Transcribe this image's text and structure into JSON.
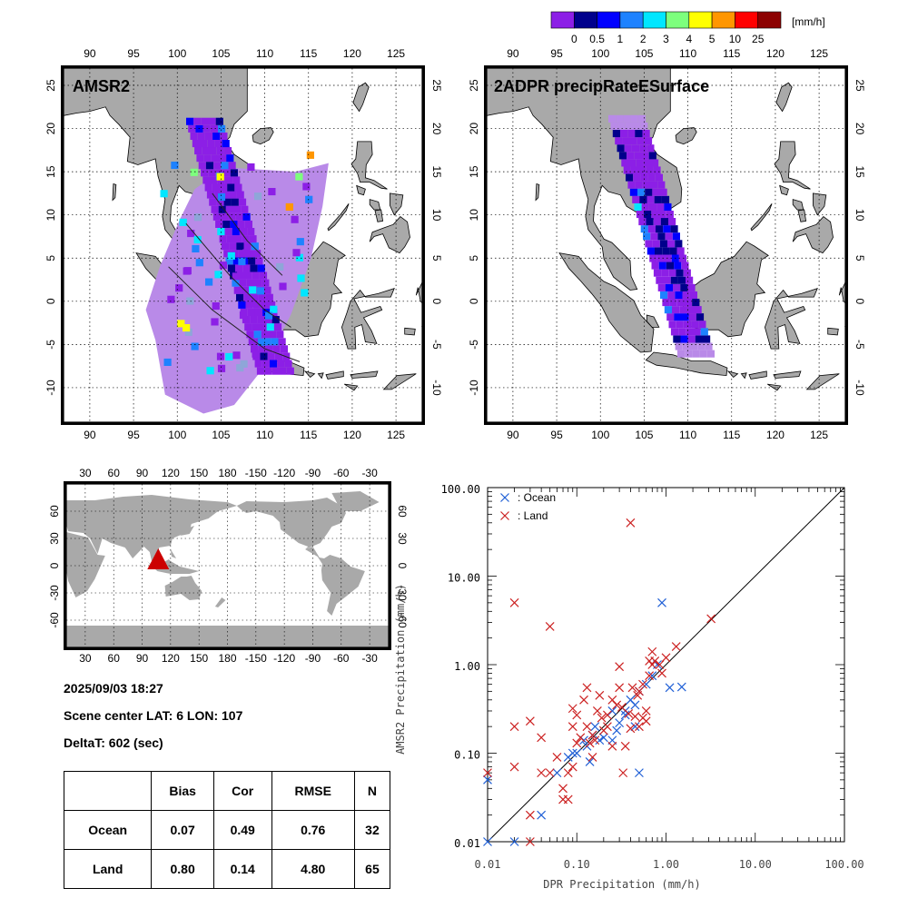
{
  "colorbar": {
    "unit": "[mm/h]",
    "ticks": [
      "0",
      "0.5",
      "1",
      "2",
      "3",
      "4",
      "5",
      "10",
      "25"
    ],
    "colors": [
      "#8c1fe6",
      "#00008c",
      "#0000ff",
      "#1e82ff",
      "#00e6ff",
      "#7dff7d",
      "#ffff00",
      "#ff9600",
      "#ff0000",
      "#8c0000"
    ]
  },
  "maps": {
    "amsr2_title": "AMSR2",
    "dpr_title": "2ADPR precipRateESurface",
    "lon_ticks": [
      "90",
      "95",
      "100",
      "105",
      "110",
      "115",
      "120",
      "125"
    ],
    "lat_ticks": [
      "25",
      "20",
      "15",
      "10",
      "5",
      "0",
      "-5",
      "-10"
    ],
    "land_color": "#a9a9a9",
    "rain_light_color": "#b98ae8"
  },
  "globe": {
    "lon_ticks": [
      "30",
      "60",
      "90",
      "120",
      "150",
      "180",
      "-150",
      "-120",
      "-90",
      "-60",
      "-30"
    ],
    "lat_ticks": [
      "60",
      "30",
      "0",
      "-30",
      "-60"
    ],
    "marker_color": "#cc0000"
  },
  "info": {
    "datetime": "2025/09/03 18:27",
    "scene_center": "Scene center LAT:  6   LON: 107",
    "deltat": "DeltaT:  602 (sec)"
  },
  "stats": {
    "headers": [
      "",
      "Bias",
      "Cor",
      "RMSE",
      "N"
    ],
    "rows": [
      [
        "Ocean",
        "0.07",
        "0.49",
        "0.76",
        "32"
      ],
      [
        "Land",
        "0.80",
        "0.14",
        "4.80",
        "65"
      ]
    ]
  },
  "chart_data": {
    "type": "scatter",
    "xlabel": "DPR Precipitation (mm/h)",
    "ylabel": "AMSR2 Precipitation (mm/h)",
    "xscale": "log",
    "yscale": "log",
    "xlim": [
      0.01,
      100
    ],
    "ylim": [
      0.01,
      100
    ],
    "x_tick_labels": [
      "0.01",
      "0.10",
      "1.00",
      "10.00",
      "100.00"
    ],
    "y_tick_labels": [
      "0.01",
      "0.10",
      "1.00",
      "10.00",
      "100.00"
    ],
    "reference_line": "1:1",
    "legend_position": "top-left",
    "series": [
      {
        "name": ": Ocean",
        "color": "#1f5fd6",
        "points": [
          [
            0.01,
            0.05
          ],
          [
            0.01,
            0.01
          ],
          [
            0.02,
            0.01
          ],
          [
            0.04,
            0.02
          ],
          [
            0.08,
            0.09
          ],
          [
            0.1,
            0.1
          ],
          [
            0.12,
            0.14
          ],
          [
            0.14,
            0.08
          ],
          [
            0.15,
            0.16
          ],
          [
            0.16,
            0.2
          ],
          [
            0.2,
            0.15
          ],
          [
            0.25,
            0.14
          ],
          [
            0.28,
            0.18
          ],
          [
            0.3,
            0.22
          ],
          [
            0.35,
            0.3
          ],
          [
            0.4,
            0.4
          ],
          [
            0.45,
            0.35
          ],
          [
            0.5,
            0.5
          ],
          [
            0.6,
            0.6
          ],
          [
            0.7,
            0.75
          ],
          [
            0.8,
            1.0
          ],
          [
            0.9,
            5.0
          ],
          [
            1.1,
            0.55
          ],
          [
            1.5,
            0.56
          ],
          [
            0.5,
            0.06
          ],
          [
            0.45,
            0.2
          ],
          [
            0.35,
            0.27
          ],
          [
            0.25,
            0.3
          ],
          [
            0.18,
            0.14
          ],
          [
            0.13,
            0.12
          ],
          [
            0.09,
            0.1
          ],
          [
            0.06,
            0.06
          ]
        ]
      },
      {
        "name": ": Land",
        "color": "#cc2222",
        "points": [
          [
            0.01,
            0.06
          ],
          [
            0.02,
            5.0
          ],
          [
            0.02,
            0.2
          ],
          [
            0.02,
            0.07
          ],
          [
            0.03,
            0.23
          ],
          [
            0.03,
            0.02
          ],
          [
            0.03,
            0.01
          ],
          [
            0.04,
            0.15
          ],
          [
            0.05,
            2.7
          ],
          [
            0.05,
            0.06
          ],
          [
            0.07,
            0.04
          ],
          [
            0.08,
            0.06
          ],
          [
            0.08,
            0.03
          ],
          [
            0.09,
            0.2
          ],
          [
            0.09,
            0.32
          ],
          [
            0.1,
            0.27
          ],
          [
            0.13,
            0.55
          ],
          [
            0.14,
            0.13
          ],
          [
            0.15,
            0.09
          ],
          [
            0.16,
            0.14
          ],
          [
            0.18,
            0.45
          ],
          [
            0.2,
            0.18
          ],
          [
            0.22,
            0.27
          ],
          [
            0.25,
            0.12
          ],
          [
            0.3,
            0.55
          ],
          [
            0.3,
            0.95
          ],
          [
            0.33,
            0.06
          ],
          [
            0.4,
            40.0
          ],
          [
            0.4,
            0.19
          ],
          [
            0.45,
            0.26
          ],
          [
            0.5,
            0.2
          ],
          [
            0.55,
            0.25
          ],
          [
            0.6,
            0.23
          ],
          [
            0.65,
            1.1
          ],
          [
            0.7,
            1.4
          ],
          [
            0.75,
            1.1
          ],
          [
            1.3,
            1.6
          ],
          [
            3.2,
            3.3
          ],
          [
            0.35,
            0.12
          ],
          [
            0.12,
            0.4
          ],
          [
            0.06,
            0.09
          ],
          [
            0.25,
            0.4
          ],
          [
            0.5,
            0.5
          ],
          [
            0.6,
            0.3
          ],
          [
            0.7,
            1.0
          ],
          [
            0.15,
            0.16
          ],
          [
            0.11,
            0.15
          ],
          [
            0.07,
            0.03
          ],
          [
            0.04,
            0.06
          ],
          [
            0.19,
            0.25
          ],
          [
            0.28,
            0.35
          ],
          [
            0.38,
            0.28
          ],
          [
            0.42,
            0.55
          ],
          [
            0.55,
            0.6
          ],
          [
            0.85,
            1.0
          ],
          [
            0.9,
            0.8
          ],
          [
            1.0,
            1.2
          ],
          [
            0.65,
            0.75
          ],
          [
            0.48,
            0.45
          ],
          [
            0.32,
            0.33
          ],
          [
            0.22,
            0.2
          ],
          [
            0.17,
            0.3
          ],
          [
            0.13,
            0.2
          ],
          [
            0.1,
            0.13
          ],
          [
            0.09,
            0.07
          ]
        ]
      }
    ]
  }
}
